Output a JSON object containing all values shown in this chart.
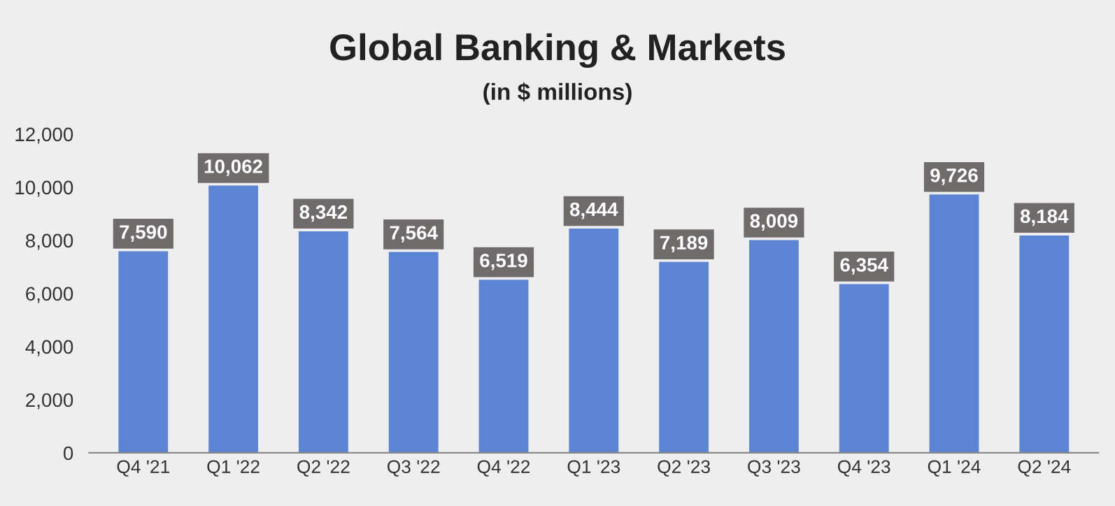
{
  "chart_data": {
    "type": "bar",
    "title": "Global Banking & Markets",
    "subtitle": "(in $ millions)",
    "categories": [
      "Q4 '21",
      "Q1 '22",
      "Q2 '22",
      "Q3 '22",
      "Q4 '22",
      "Q1 '23",
      "Q2 '23",
      "Q3 '23",
      "Q4 '23",
      "Q1 '24",
      "Q2 '24"
    ],
    "values": [
      7590,
      10062,
      8342,
      7564,
      6519,
      8444,
      7189,
      8009,
      6354,
      9726,
      8184
    ],
    "value_labels": [
      "7,590",
      "10,062",
      "8,342",
      "7,564",
      "6,519",
      "8,444",
      "7,189",
      "8,009",
      "6,354",
      "9,726",
      "8,184"
    ],
    "color": "#5b84d4",
    "ylim": [
      0,
      12000
    ],
    "yticks": [
      0,
      {
        "value": 2000,
        "label": "2,000"
      },
      {
        "value": 4000,
        "label": "4,000"
      },
      {
        "value": 6000,
        "label": "6,000"
      },
      {
        "value": 8000,
        "label": "8,000"
      },
      {
        "value": 10000,
        "label": "10,000"
      },
      {
        "value": 12000,
        "label": "12,000"
      }
    ],
    "grid": false,
    "legend": false
  }
}
